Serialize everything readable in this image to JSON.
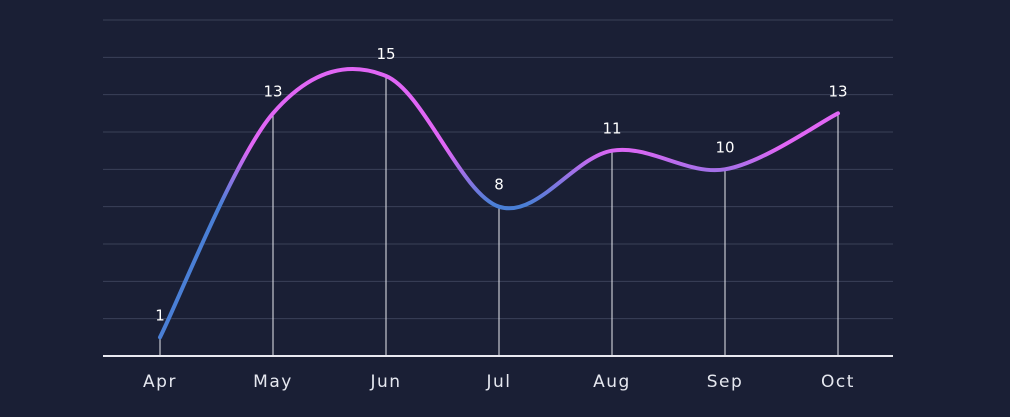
{
  "chart_data": {
    "type": "line",
    "categories": [
      "Apr",
      "May",
      "Jun",
      "Jul",
      "Aug",
      "Sep",
      "Oct"
    ],
    "series": [
      {
        "values": [
          1,
          13,
          15,
          8,
          11,
          10,
          13
        ]
      }
    ],
    "title": "",
    "xlabel": "",
    "ylabel": "",
    "ylim": [
      0,
      18
    ],
    "grid": true,
    "smooth": true,
    "data_labels": true,
    "drop_lines": true,
    "colors": {
      "background": "#1a1f35",
      "grid": "#3a4058",
      "axis": "#e8e8f0",
      "drop_line": "#e8e8f0",
      "gradient_low": "#4a7fd6",
      "gradient_high": "#e066f5",
      "label": "#ffffff"
    }
  }
}
